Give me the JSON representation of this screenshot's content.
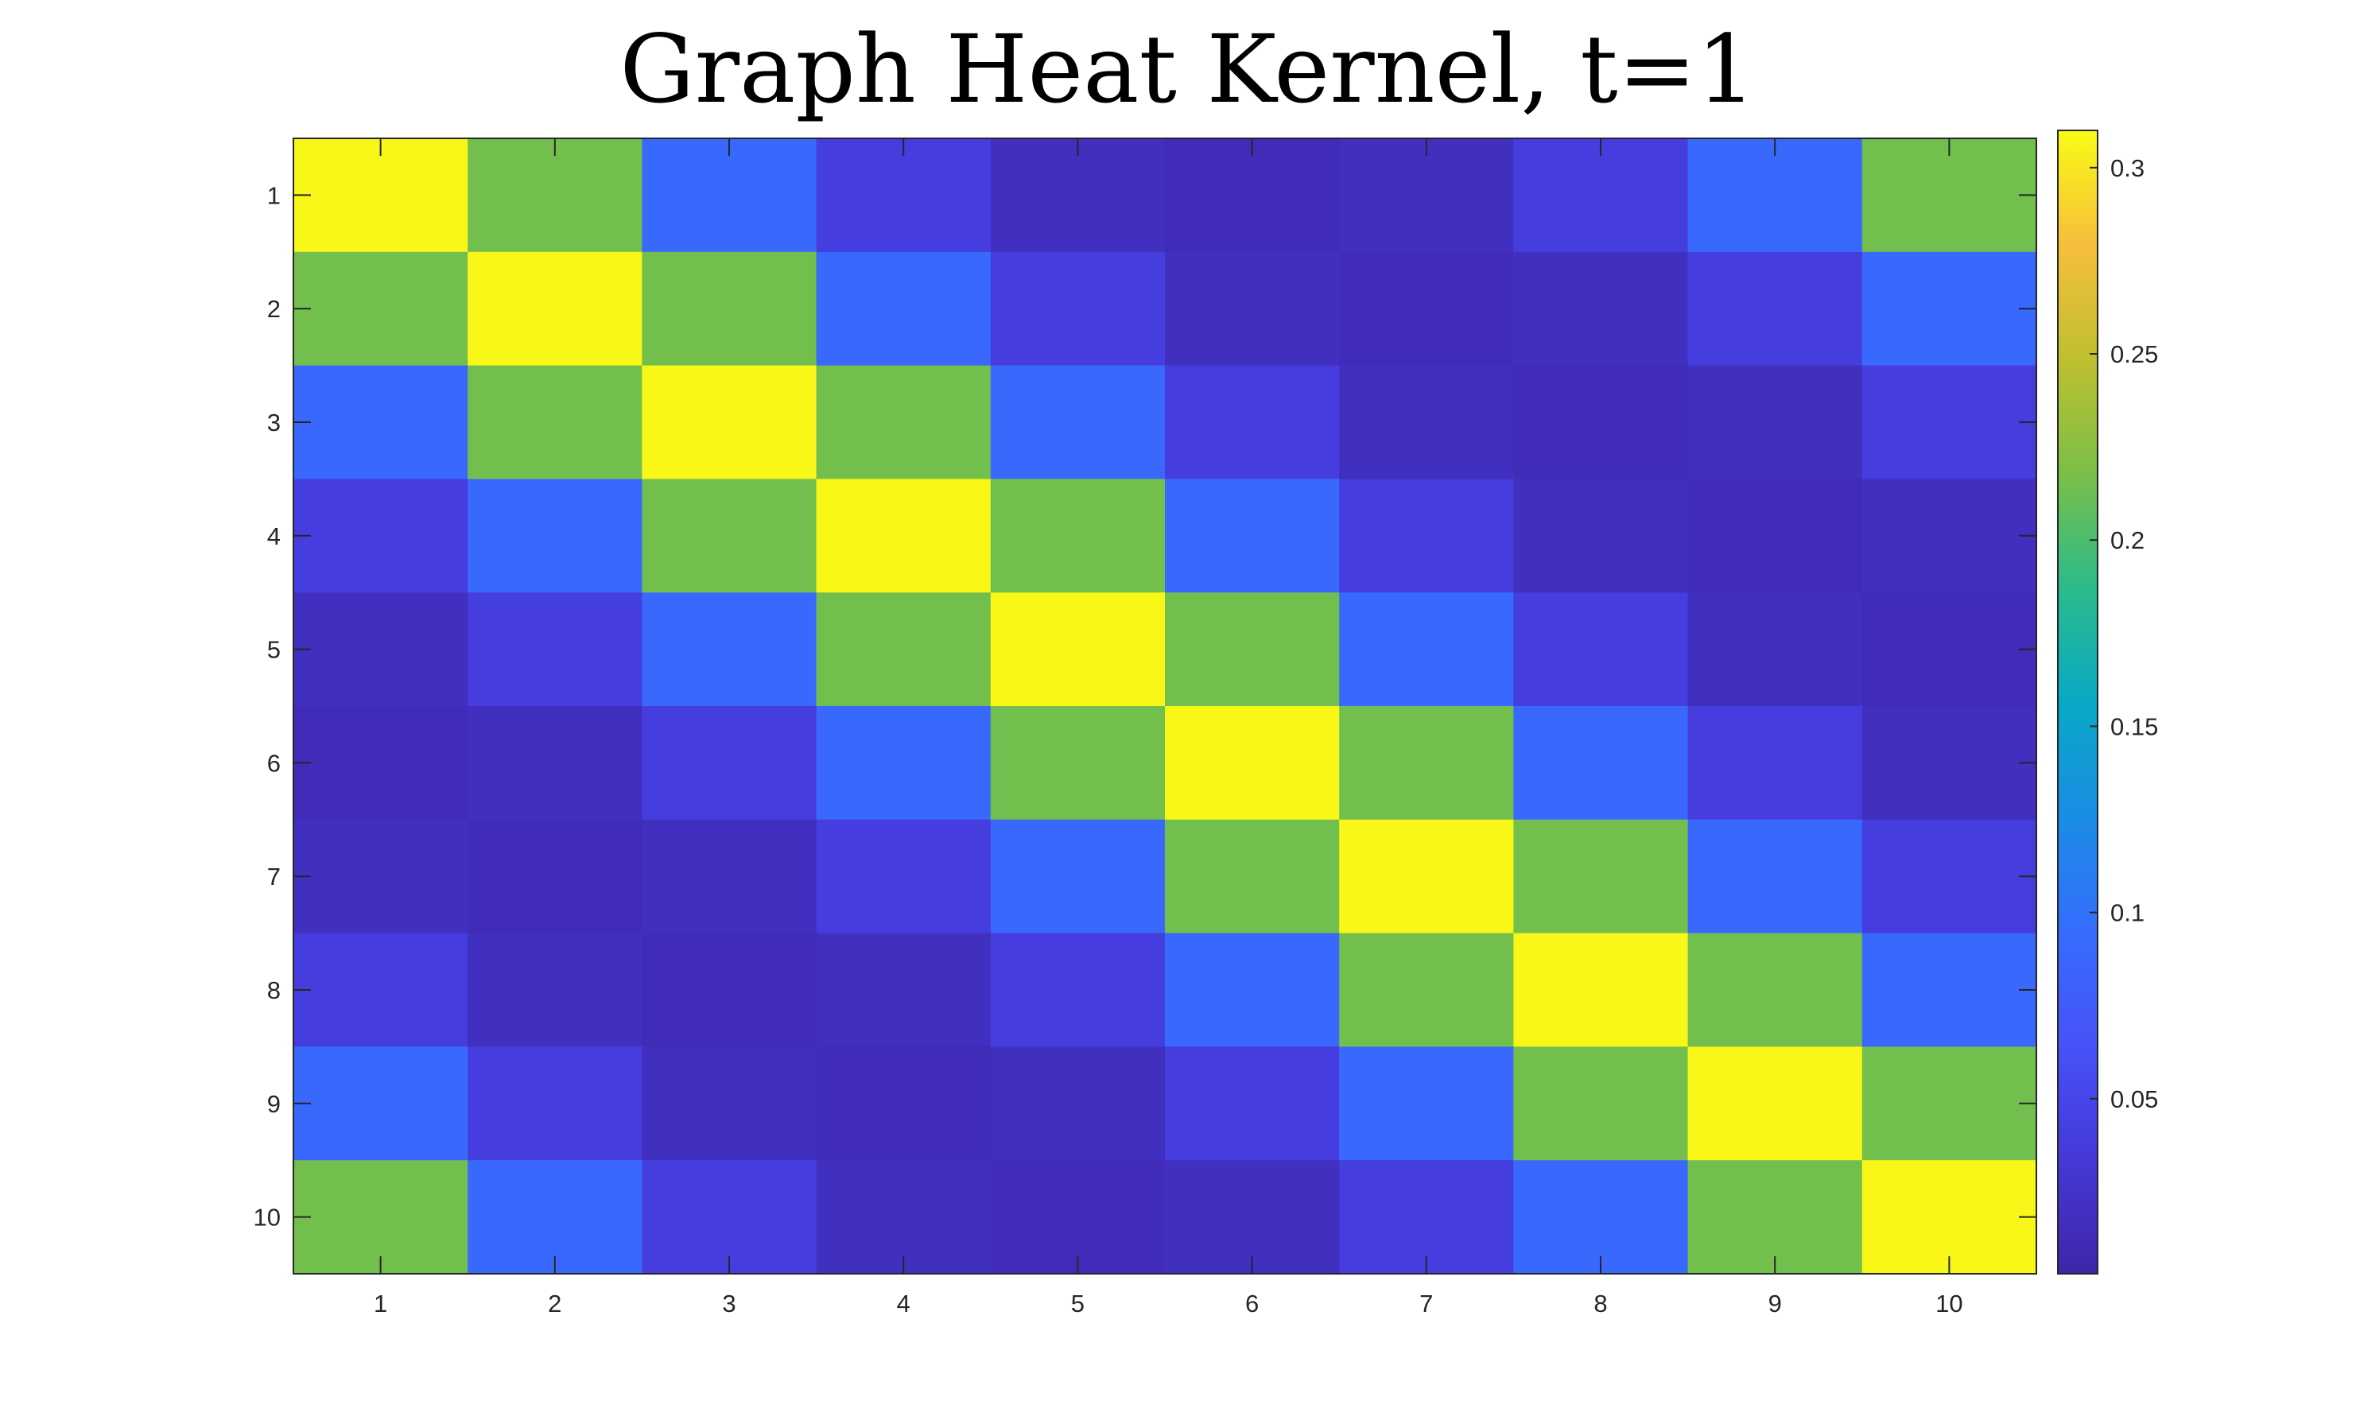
{
  "chart_data": {
    "type": "heatmap",
    "title": "Graph Heat Kernel, t=1",
    "x": [
      1,
      2,
      3,
      4,
      5,
      6,
      7,
      8,
      9,
      10
    ],
    "y": [
      1,
      2,
      3,
      4,
      5,
      6,
      7,
      8,
      9,
      10
    ],
    "x_tick_labels": [
      "1",
      "2",
      "3",
      "4",
      "5",
      "6",
      "7",
      "8",
      "9",
      "10"
    ],
    "y_tick_labels": [
      "1",
      "2",
      "3",
      "4",
      "5",
      "6",
      "7",
      "8",
      "9",
      "10"
    ],
    "values": [
      [
        0.308,
        0.215,
        0.09,
        0.04,
        0.018,
        0.014,
        0.018,
        0.04,
        0.09,
        0.215
      ],
      [
        0.215,
        0.308,
        0.215,
        0.09,
        0.04,
        0.018,
        0.014,
        0.018,
        0.04,
        0.09
      ],
      [
        0.09,
        0.215,
        0.308,
        0.215,
        0.09,
        0.04,
        0.018,
        0.014,
        0.018,
        0.04
      ],
      [
        0.04,
        0.09,
        0.215,
        0.308,
        0.215,
        0.09,
        0.04,
        0.018,
        0.014,
        0.018
      ],
      [
        0.018,
        0.04,
        0.09,
        0.215,
        0.308,
        0.215,
        0.09,
        0.04,
        0.018,
        0.014
      ],
      [
        0.014,
        0.018,
        0.04,
        0.09,
        0.215,
        0.308,
        0.215,
        0.09,
        0.04,
        0.018
      ],
      [
        0.018,
        0.014,
        0.018,
        0.04,
        0.09,
        0.215,
        0.308,
        0.215,
        0.09,
        0.04
      ],
      [
        0.04,
        0.018,
        0.014,
        0.018,
        0.04,
        0.09,
        0.215,
        0.308,
        0.215,
        0.09
      ],
      [
        0.09,
        0.04,
        0.018,
        0.014,
        0.018,
        0.04,
        0.09,
        0.215,
        0.308,
        0.215
      ],
      [
        0.215,
        0.09,
        0.04,
        0.018,
        0.014,
        0.018,
        0.04,
        0.09,
        0.215,
        0.308
      ]
    ],
    "colorbar": {
      "limits": [
        0.003,
        0.31
      ],
      "ticks": [
        0.05,
        0.1,
        0.15,
        0.2,
        0.25,
        0.3
      ],
      "tick_labels": [
        "0.05",
        "0.1",
        "0.15",
        "0.2",
        "0.25",
        "0.3"
      ],
      "colormap": "parula"
    },
    "y_axis_reversed": true,
    "grid": false,
    "colors": {
      "axis": "#262626",
      "parula": [
        [
          0.0,
          "#3e26a8"
        ],
        [
          0.1,
          "#4538d7"
        ],
        [
          0.2,
          "#4752f8"
        ],
        [
          0.3,
          "#366dfd"
        ],
        [
          0.4,
          "#1a8de5"
        ],
        [
          0.5,
          "#09a9c5"
        ],
        [
          0.6,
          "#2bbb8a"
        ],
        [
          0.7,
          "#7bbf48"
        ],
        [
          0.8,
          "#bec02f"
        ],
        [
          0.9,
          "#f7be3c"
        ],
        [
          1.0,
          "#f9fb15"
        ]
      ]
    }
  }
}
